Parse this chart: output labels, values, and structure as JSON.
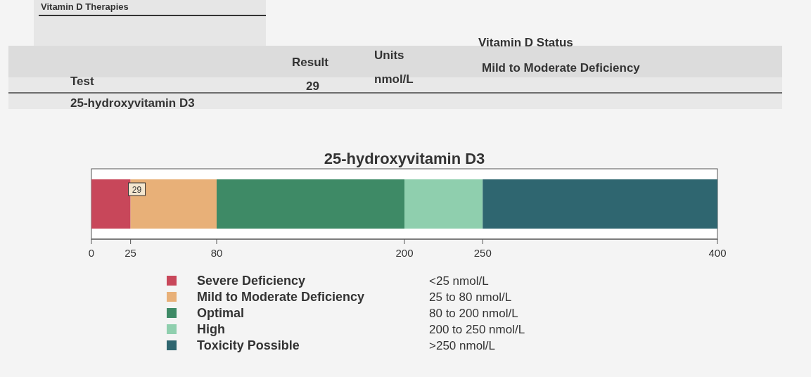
{
  "chart_data": {
    "type": "bar",
    "orientation": "horizontal",
    "stacked": true,
    "title": "25-hydroxyvitamin D3",
    "categories": [
      null
    ],
    "series": [
      {
        "name": "Severe Deficiency",
        "color": "#c8475a",
        "values": [
          25
        ]
      },
      {
        "name": "Mild to Moderate Deficiency",
        "color": "#e8b078",
        "values": [
          55
        ]
      },
      {
        "name": "Optimal",
        "color": "#3e8a66",
        "values": [
          120
        ]
      },
      {
        "name": "High",
        "color": "#8fcfae",
        "values": [
          50
        ]
      },
      {
        "name": "Toxicity Possible",
        "color": "#2f6670",
        "values": [
          150
        ]
      }
    ],
    "xlim": [
      0,
      400
    ],
    "xticks": [
      0,
      25,
      80,
      200,
      250,
      400
    ],
    "legend": "bottom",
    "annotations": [
      "Vitamin D Therapies",
      "Test",
      "Result",
      "Units",
      "Vitamin D Status",
      "25-hydroxyvitamin D3",
      "29",
      "nmol/L",
      "Mild to Moderate Deficiency",
      "<25 nmol/L",
      "25 to 80 nmol/L",
      "80 to 200 nmol/L",
      "200 to 250 nmol/L",
      ">250 nmol/L",
      {
        "text": "29",
        "x": 29
      }
    ]
  }
}
